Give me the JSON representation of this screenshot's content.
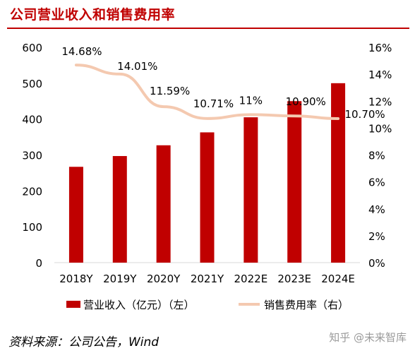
{
  "title": "公司营业收入和销售费用率",
  "source": "资料来源：公司公告，Wind",
  "watermark": "知乎 @未来智库",
  "colors": {
    "bar": "#c00000",
    "line": "#f4c9b0",
    "title": "#c00000"
  },
  "chart_data": {
    "type": "bar",
    "categories": [
      "2018Y",
      "2019Y",
      "2020Y",
      "2021Y",
      "2022E",
      "2023E",
      "2024E"
    ],
    "series": [
      {
        "name": "营业收入（亿元）（左）",
        "type": "bar",
        "axis": "left",
        "values": [
          267,
          297,
          327,
          363,
          405,
          450,
          500
        ]
      },
      {
        "name": "销售费用率（右）",
        "type": "line",
        "axis": "right",
        "values": [
          14.68,
          14.01,
          11.59,
          10.71,
          11.0,
          10.9,
          10.7
        ],
        "labels": [
          "14.68%",
          "14.01%",
          "11.59%",
          "10.71%",
          "11%",
          "10.90%",
          "10.70%"
        ]
      }
    ],
    "yleft": {
      "lim": [
        0,
        600
      ],
      "ticks": [
        0,
        100,
        200,
        300,
        400,
        500,
        600
      ]
    },
    "yright": {
      "lim": [
        0,
        16
      ],
      "ticks": [
        0,
        2,
        4,
        6,
        8,
        10,
        12,
        14,
        16
      ],
      "tick_labels": [
        "0%",
        "2%",
        "4%",
        "6%",
        "8%",
        "10%",
        "12%",
        "14%",
        "16%"
      ]
    },
    "grid": false,
    "legend_position": "bottom"
  }
}
